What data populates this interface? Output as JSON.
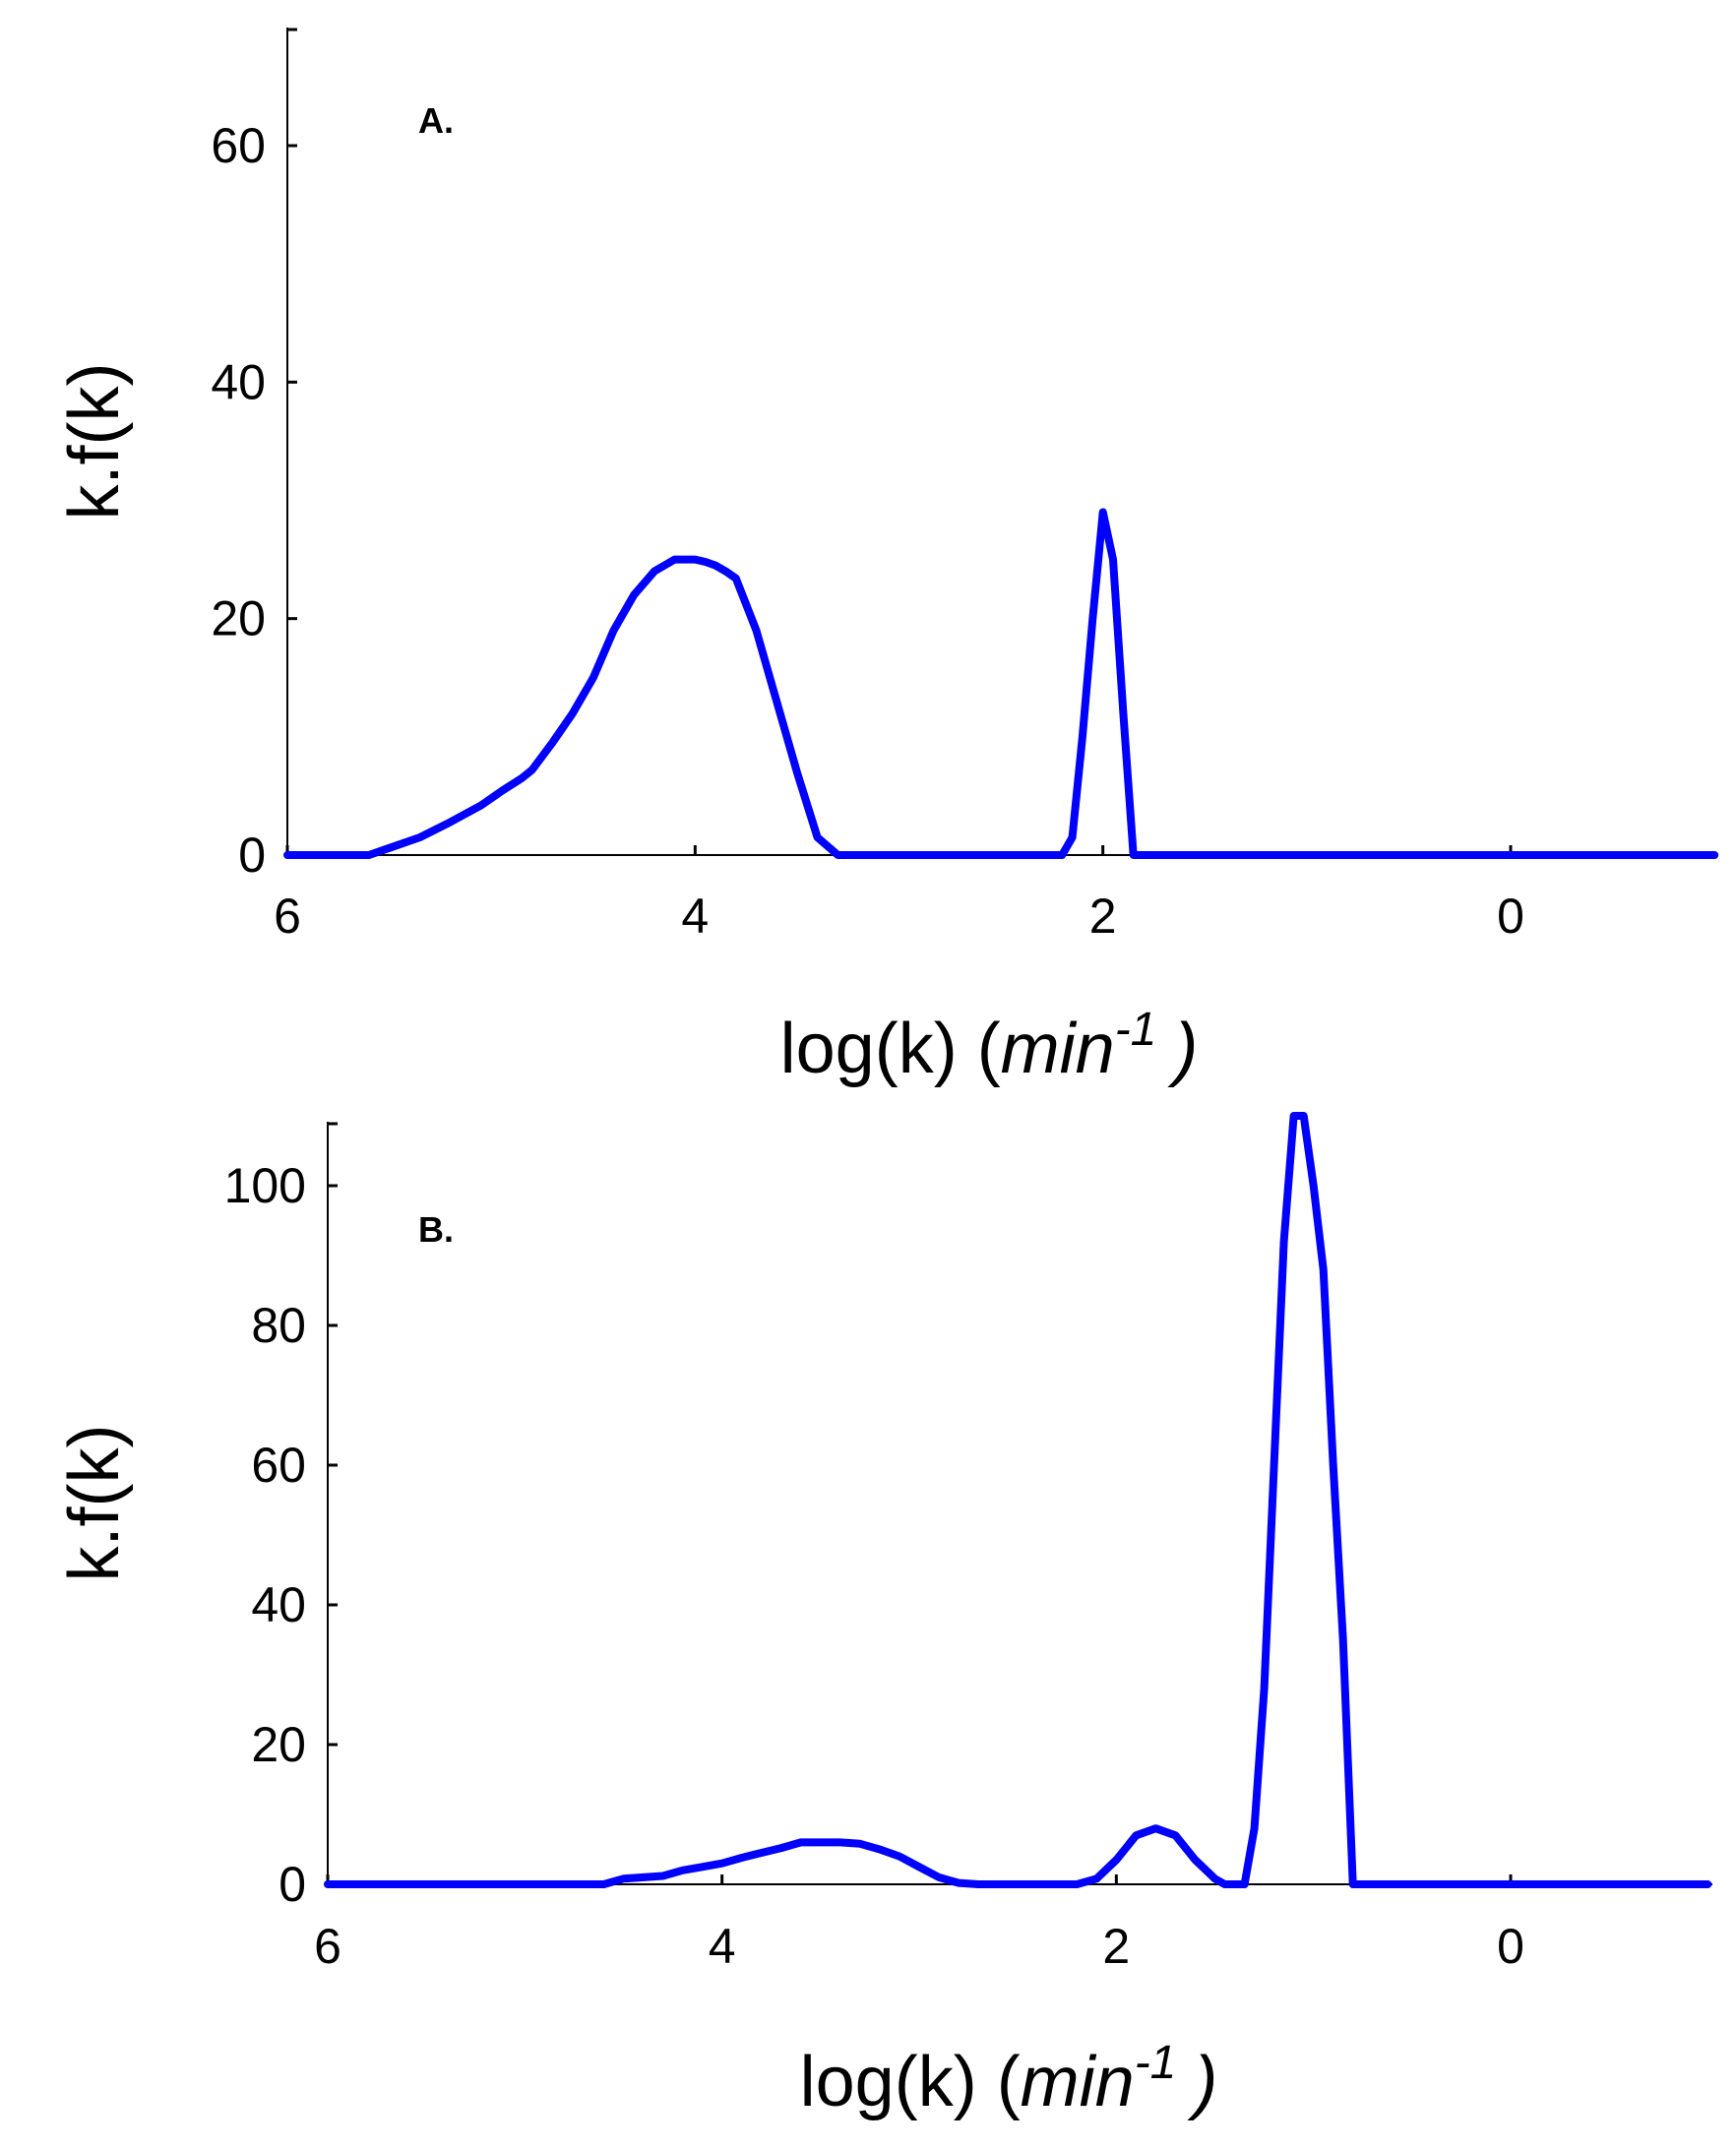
{
  "figure": {
    "line_color": "#0000ff",
    "axis_color": "#000000"
  },
  "chart_data": [
    {
      "type": "line",
      "panel_label": "A.",
      "xlabel": "log(k)",
      "xlabel_unit": "min",
      "xlabel_unit_exponent": "-1",
      "xlabel_close": ")",
      "ylabel": "k.f(k)",
      "x_reversed": true,
      "xlim": [
        6,
        -1
      ],
      "ylim": [
        0,
        70
      ],
      "xticks": [
        6,
        4,
        2,
        0
      ],
      "xtick_labels": [
        "6",
        "4",
        "2",
        "0"
      ],
      "yticks": [
        0,
        20,
        40,
        60
      ],
      "ytick_labels": [
        "0",
        "20",
        "40",
        "60"
      ],
      "grid": false,
      "series": [
        {
          "color": "#0000ff",
          "x": [
            6.0,
            5.8,
            5.6,
            5.5,
            5.35,
            5.2,
            5.05,
            4.95,
            4.85,
            4.8,
            4.7,
            4.6,
            4.5,
            4.4,
            4.3,
            4.2,
            4.1,
            4.0,
            3.95,
            3.9,
            3.85,
            3.8,
            3.7,
            3.6,
            3.5,
            3.4,
            3.3,
            3.2,
            3.0,
            2.5,
            2.2,
            2.15,
            2.1,
            2.05,
            2.0,
            1.95,
            1.9,
            1.85,
            1.8,
            1.75,
            1.7,
            1.65,
            1.62,
            1.4,
            1.35,
            1.3,
            1.25,
            1.2,
            1.15,
            1.1,
            1.05,
            0.5,
            0.0,
            -1.0
          ],
          "y": [
            0,
            0,
            0,
            0.6,
            1.5,
            2.8,
            4.2,
            5.4,
            6.5,
            7.2,
            9.5,
            12,
            15,
            19,
            22,
            24,
            25,
            25,
            24.8,
            24.5,
            24,
            23.4,
            19,
            13,
            7,
            1.5,
            0,
            0,
            0,
            0,
            0,
            1.5,
            10,
            20,
            29,
            25,
            12,
            0,
            0,
            0,
            0,
            0,
            0,
            0,
            0,
            0,
            0,
            0,
            0,
            0,
            0,
            0,
            0,
            0
          ]
        }
      ]
    },
    {
      "type": "line",
      "panel_label": "B.",
      "xlabel": "log(k)",
      "xlabel_unit": "min",
      "xlabel_unit_exponent": "-1",
      "xlabel_close": ")",
      "ylabel": "k.f(k)",
      "x_reversed": true,
      "xlim": [
        6,
        -1
      ],
      "ylim": [
        0,
        110
      ],
      "xticks": [
        6,
        4,
        2,
        0
      ],
      "xtick_labels": [
        "6",
        "4",
        "2",
        "0"
      ],
      "yticks": [
        0,
        20,
        40,
        60,
        80,
        100
      ],
      "ytick_labels": [
        "0",
        "20",
        "40",
        "60",
        "80",
        "100"
      ],
      "grid": false,
      "series": [
        {
          "color": "#0000ff",
          "x": [
            6.0,
            5.0,
            4.6,
            4.5,
            4.3,
            4.2,
            4.1,
            4.0,
            3.9,
            3.8,
            3.7,
            3.6,
            3.5,
            3.4,
            3.3,
            3.2,
            3.1,
            3.0,
            2.9,
            2.8,
            2.7,
            2.6,
            2.2,
            2.1,
            2.0,
            1.9,
            1.8,
            1.7,
            1.6,
            1.5,
            1.45,
            1.4,
            1.35,
            1.3,
            1.25,
            1.2,
            1.15,
            1.1,
            1.05,
            1.0,
            0.95,
            0.9,
            0.85,
            0.8,
            0.7,
            0.0,
            -1.0
          ],
          "y": [
            0,
            0,
            0,
            0.8,
            1.2,
            2.0,
            2.5,
            3.0,
            3.8,
            4.5,
            5.2,
            6.0,
            6.0,
            6.0,
            5.8,
            5.0,
            4.0,
            2.5,
            1.0,
            0.2,
            0,
            0,
            0,
            0.8,
            3.5,
            7.0,
            8.0,
            7.0,
            3.5,
            0.8,
            0,
            0,
            0,
            8,
            28,
            60,
            92,
            110,
            110,
            100,
            88,
            60,
            35,
            0,
            0,
            0,
            0
          ]
        }
      ]
    }
  ]
}
